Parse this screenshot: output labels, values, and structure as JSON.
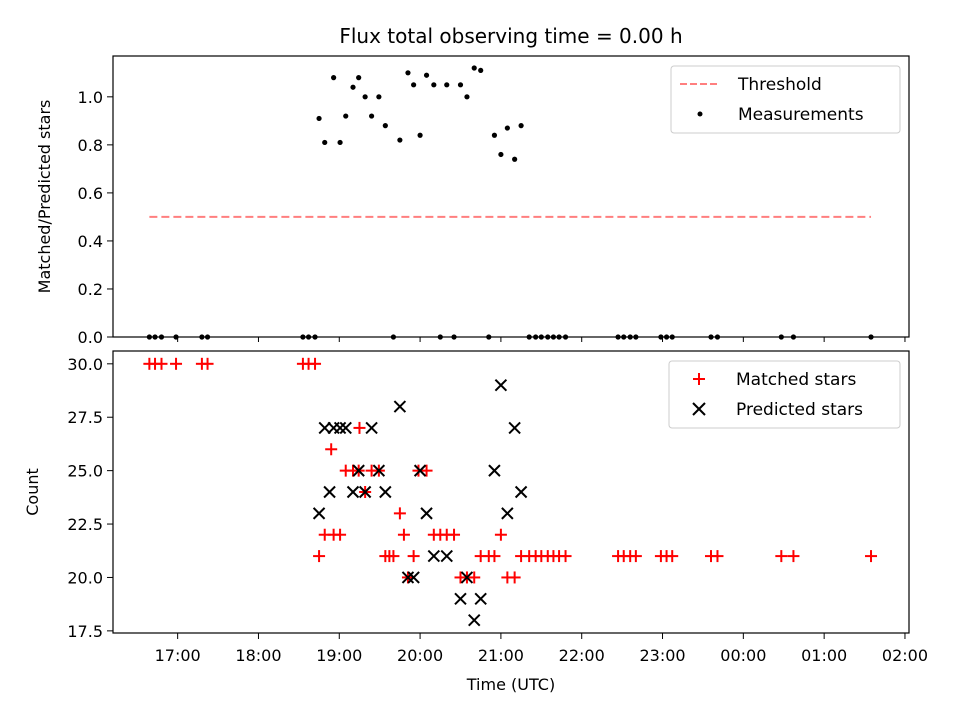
{
  "title": "Flux total observing time = 0.00 h",
  "chart_data": [
    {
      "type": "scatter",
      "ylabel": "Matched/Predicted stars",
      "ylim": [
        0,
        1.17
      ],
      "yticks": [
        "0.0",
        "0.2",
        "0.4",
        "0.6",
        "0.8",
        "1.0"
      ],
      "ytick_values": [
        0,
        0.2,
        0.4,
        0.6,
        0.8,
        1.0
      ],
      "xlim_hours": [
        16.2,
        26.05
      ],
      "threshold": {
        "name": "Threshold",
        "value": 0.5,
        "x_range": [
          16.65,
          25.58
        ],
        "color": "#ff7f7f"
      },
      "legend": [
        "Threshold",
        "Measurements"
      ],
      "legend_position": "upper right",
      "series": [
        {
          "name": "Measurements",
          "color": "#000000",
          "x": [
            18.75,
            18.82,
            18.93,
            19.01,
            19.08,
            19.17,
            19.24,
            19.32,
            19.4,
            19.49,
            19.57,
            19.75,
            19.85,
            19.92,
            20.0,
            20.08,
            20.17,
            20.33,
            20.5,
            20.58,
            20.67,
            20.75,
            20.92,
            21.0,
            21.08,
            21.17,
            21.25,
            16.65,
            16.72,
            16.8,
            16.98,
            17.3,
            17.37,
            18.55,
            18.62,
            18.7,
            19.67,
            20.25,
            20.42,
            20.85,
            21.35,
            21.43,
            21.5,
            21.58,
            21.65,
            21.72,
            21.8,
            22.45,
            22.52,
            22.6,
            22.67,
            22.98,
            23.05,
            23.12,
            23.6,
            23.68,
            24.47,
            24.62,
            25.58
          ],
          "y": [
            0.91,
            0.81,
            1.08,
            0.81,
            0.92,
            1.04,
            1.08,
            1.0,
            0.92,
            1.0,
            0.88,
            0.82,
            1.1,
            1.05,
            0.84,
            1.09,
            1.05,
            1.05,
            1.05,
            1.0,
            1.12,
            1.11,
            0.84,
            0.76,
            0.87,
            0.74,
            0.88,
            0,
            0,
            0,
            0,
            0,
            0,
            0,
            0,
            0,
            0,
            0,
            0,
            0,
            0,
            0,
            0,
            0,
            0,
            0,
            0,
            0,
            0,
            0,
            0,
            0,
            0,
            0,
            0,
            0,
            0,
            0,
            0
          ]
        }
      ]
    },
    {
      "type": "scatter",
      "ylabel": "Count",
      "xlabel": "Time (UTC)",
      "ylim": [
        17.4,
        30.6
      ],
      "yticks": [
        "17.5",
        "20.0",
        "22.5",
        "25.0",
        "27.5",
        "30.0"
      ],
      "ytick_values": [
        17.5,
        20,
        22.5,
        25,
        27.5,
        30
      ],
      "xlim_hours": [
        16.2,
        26.05
      ],
      "xticks": [
        "17:00",
        "18:00",
        "19:00",
        "20:00",
        "21:00",
        "22:00",
        "23:00",
        "00:00",
        "01:00",
        "02:00"
      ],
      "xtick_values": [
        17,
        18,
        19,
        20,
        21,
        22,
        23,
        24,
        25,
        26
      ],
      "legend": [
        "Matched stars",
        "Predicted stars"
      ],
      "legend_position": "upper right",
      "series": [
        {
          "name": "Matched stars",
          "marker": "plus",
          "color": "#ff0000",
          "x": [
            16.65,
            16.72,
            16.8,
            16.98,
            17.3,
            17.37,
            18.55,
            18.62,
            18.7,
            18.75,
            18.82,
            18.9,
            18.93,
            19.01,
            19.08,
            19.17,
            19.24,
            19.25,
            19.32,
            19.4,
            19.49,
            19.57,
            19.62,
            19.67,
            19.75,
            19.8,
            19.85,
            19.92,
            19.98,
            20.08,
            20.17,
            20.25,
            20.33,
            20.42,
            20.5,
            20.58,
            20.67,
            20.75,
            20.85,
            20.92,
            21.0,
            21.08,
            21.17,
            21.25,
            21.35,
            21.43,
            21.5,
            21.58,
            21.65,
            21.72,
            21.8,
            22.45,
            22.52,
            22.6,
            22.67,
            22.98,
            23.05,
            23.12,
            23.6,
            23.68,
            24.47,
            24.62,
            25.58
          ],
          "y": [
            30,
            30,
            30,
            30,
            30,
            30,
            30,
            30,
            30,
            21,
            22,
            26,
            22,
            22,
            25,
            25,
            25,
            27,
            24,
            25,
            25,
            21,
            21,
            21,
            23,
            22,
            20,
            21,
            25,
            25,
            22,
            22,
            22,
            22,
            20,
            20,
            20,
            21,
            21,
            21,
            22,
            20,
            20,
            21,
            21,
            21,
            21,
            21,
            21,
            21,
            21,
            21,
            21,
            21,
            21,
            21,
            21,
            21,
            21,
            21,
            21,
            21,
            21
          ]
        },
        {
          "name": "Predicted stars",
          "marker": "x",
          "color": "#000000",
          "x": [
            18.75,
            18.82,
            18.88,
            18.93,
            19.01,
            19.08,
            19.17,
            19.24,
            19.32,
            19.4,
            19.49,
            19.57,
            19.75,
            19.85,
            19.92,
            20.0,
            20.08,
            20.17,
            20.33,
            20.5,
            20.58,
            20.67,
            20.75,
            20.92,
            21.0,
            21.08,
            21.17,
            21.25
          ],
          "y": [
            23,
            27,
            24,
            27,
            27,
            27,
            24,
            25,
            24,
            27,
            25,
            24,
            28,
            20,
            20,
            25,
            23,
            21,
            21,
            19,
            20,
            18,
            19,
            25,
            29,
            23,
            27,
            24
          ]
        }
      ]
    }
  ]
}
